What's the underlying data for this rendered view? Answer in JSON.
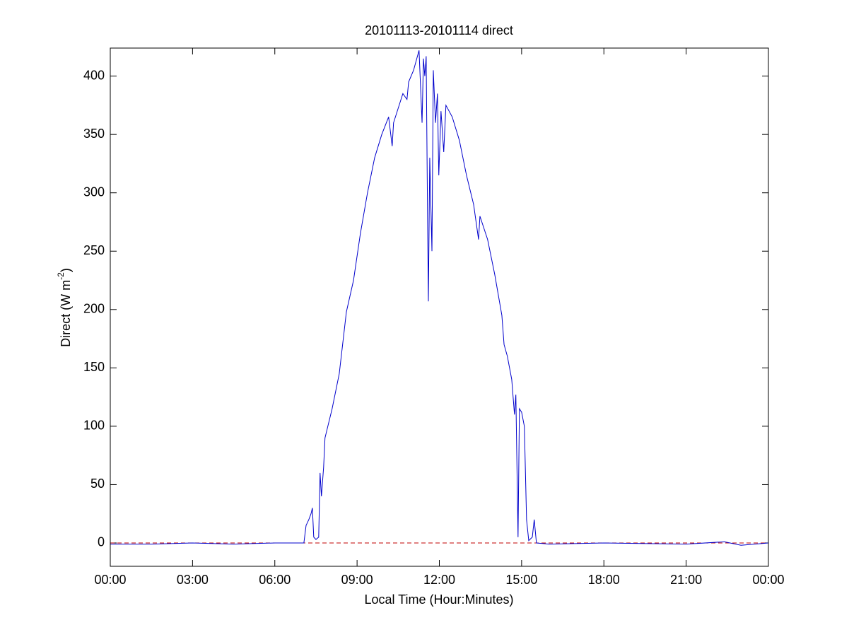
{
  "chart_data": {
    "type": "line",
    "title": "20101113-20101114 direct",
    "xlabel": "Local Time (Hour:Minutes)",
    "ylabel": {
      "text": "Direct (W m",
      "superscript": "-2",
      "suffix": ")"
    },
    "xlim": [
      0,
      24
    ],
    "ylim": [
      -20,
      424
    ],
    "xticks": [
      {
        "value": 0,
        "label": "00:00"
      },
      {
        "value": 3,
        "label": "03:00"
      },
      {
        "value": 6,
        "label": "06:00"
      },
      {
        "value": 9,
        "label": "09:00"
      },
      {
        "value": 12,
        "label": "12:00"
      },
      {
        "value": 15,
        "label": "15:00"
      },
      {
        "value": 18,
        "label": "18:00"
      },
      {
        "value": 21,
        "label": "21:00"
      },
      {
        "value": 24,
        "label": "00:00"
      }
    ],
    "yticks": [
      0,
      50,
      100,
      150,
      200,
      250,
      300,
      350,
      400
    ],
    "reference_line": {
      "value": 0,
      "color": "#c00000",
      "dashed": true
    },
    "series": [
      {
        "color": "#0000cc",
        "x": [
          0,
          1.5,
          3,
          4.5,
          6,
          7.06,
          7.14,
          7.24,
          7.32,
          7.37,
          7.42,
          7.5,
          7.6,
          7.65,
          7.7,
          7.78,
          7.83,
          8.09,
          8.35,
          8.61,
          8.87,
          9.12,
          9.38,
          9.64,
          9.9,
          10.15,
          10.28,
          10.33,
          10.67,
          10.82,
          10.88,
          11.06,
          11.26,
          11.37,
          11.42,
          11.47,
          11.52,
          11.57,
          11.6,
          11.65,
          11.73,
          11.78,
          11.86,
          11.93,
          11.98,
          12.06,
          12.16,
          12.24,
          12.47,
          12.73,
          12.99,
          13.25,
          13.43,
          13.48,
          13.76,
          14.02,
          14.28,
          14.36,
          14.48,
          14.64,
          14.74,
          14.79,
          14.87,
          14.92,
          15.0,
          15.1,
          15.18,
          15.26,
          15.39,
          15.46,
          15.54,
          16,
          18,
          21,
          22.4,
          23,
          24
        ],
        "values": [
          -1,
          -1,
          0,
          -1,
          0,
          0,
          15,
          20,
          25,
          30,
          5,
          3,
          5,
          60,
          40,
          65,
          90,
          115,
          145,
          198,
          225,
          265,
          300,
          330,
          350,
          365,
          340,
          360,
          385,
          380,
          395,
          405,
          422,
          360,
          415,
          400,
          417,
          280,
          207,
          330,
          250,
          405,
          360,
          385,
          315,
          370,
          335,
          375,
          365,
          345,
          315,
          290,
          260,
          280,
          260,
          230,
          195,
          170,
          160,
          140,
          110,
          127,
          5,
          115,
          112,
          100,
          20,
          2,
          5,
          20,
          0,
          -1,
          0,
          -1,
          1,
          -2,
          0
        ]
      }
    ]
  }
}
